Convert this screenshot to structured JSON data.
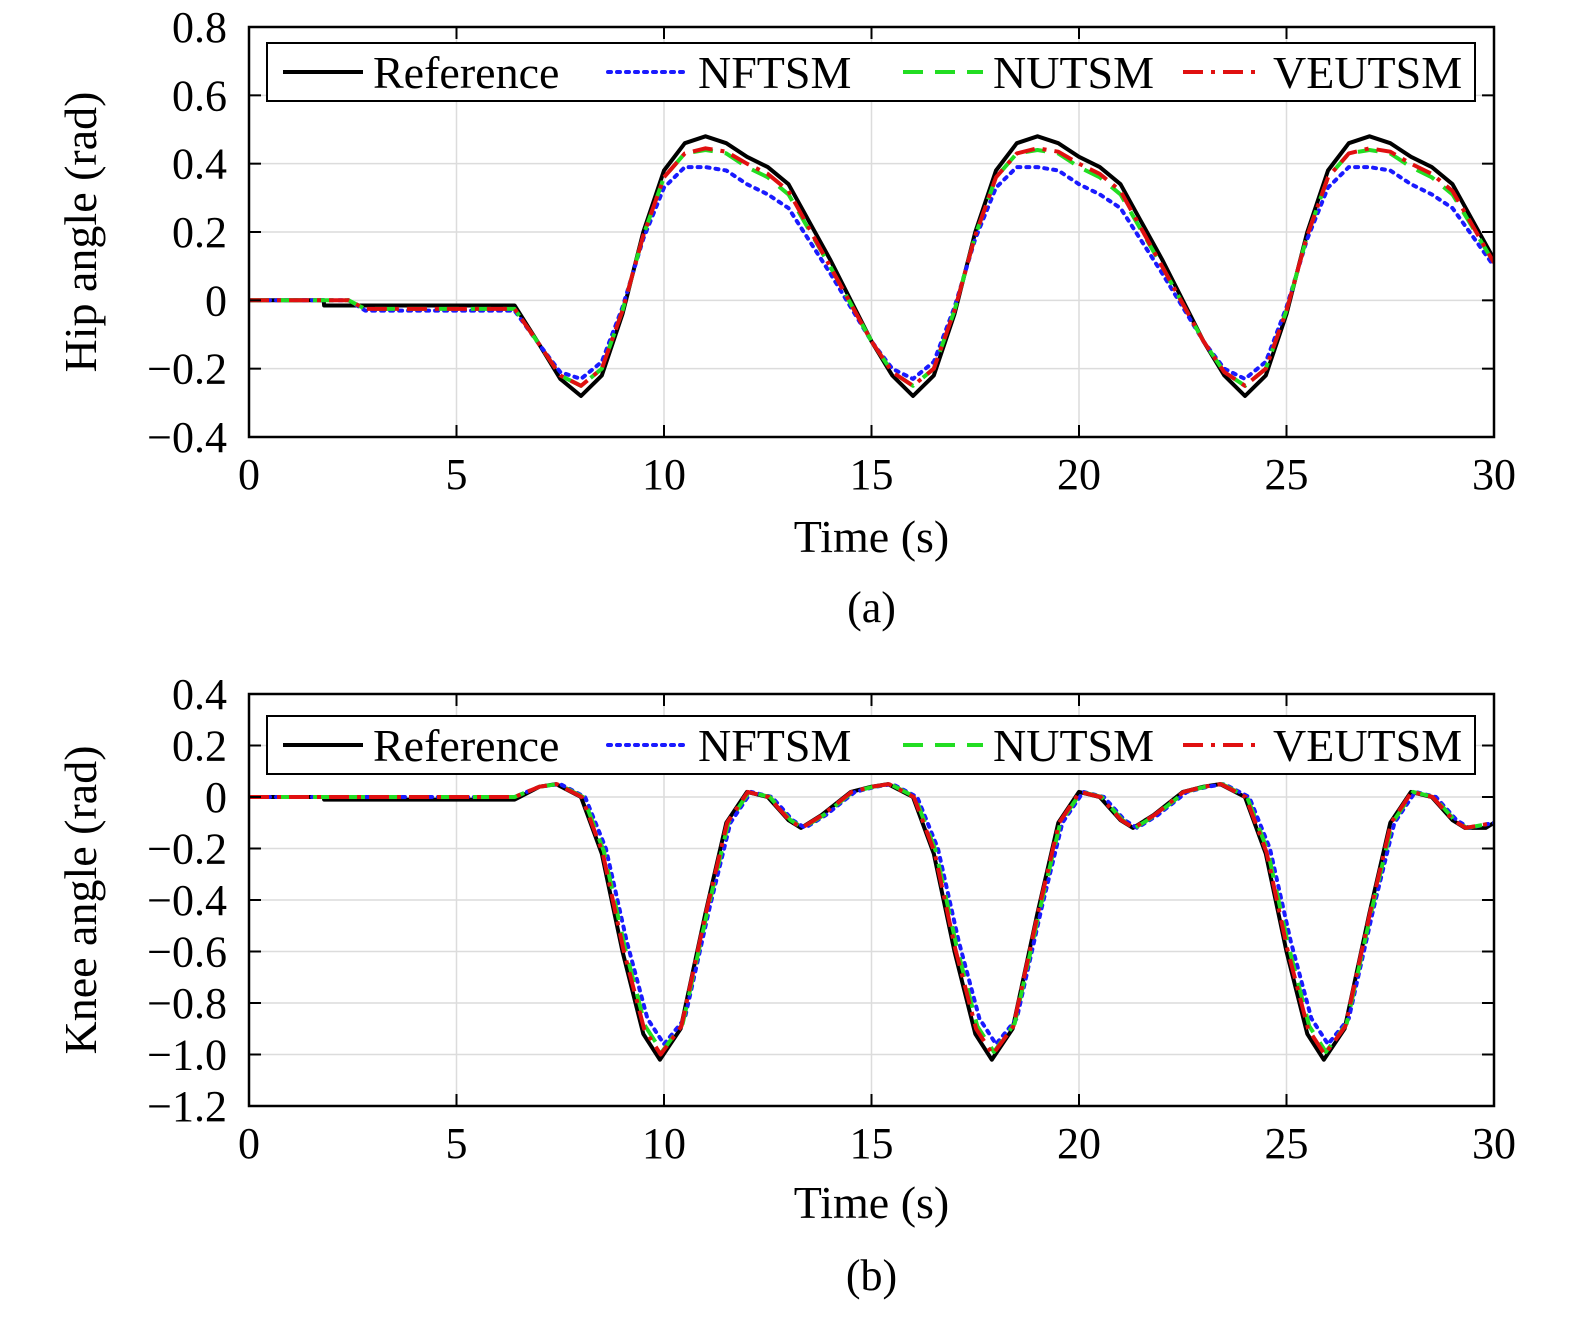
{
  "chart_data": [
    {
      "type": "line",
      "caption": "(a)",
      "title": "",
      "xlabel": "Time (s)",
      "ylabel": "Hip angle (rad)",
      "xlim": [
        0,
        30
      ],
      "ylim": [
        -0.4,
        0.8
      ],
      "xticks": [
        0,
        5,
        10,
        15,
        20,
        25,
        30
      ],
      "xtick_labels": [
        "0",
        "5",
        "10",
        "15",
        "20",
        "25",
        "30"
      ],
      "yticks": [
        -0.4,
        -0.2,
        0,
        0.2,
        0.4,
        0.6,
        0.8
      ],
      "ytick_labels": [
        "−0.4",
        "−0.2",
        "0",
        "0.2",
        "0.4",
        "0.6",
        "0.8"
      ],
      "grid": true,
      "legend_position": "top",
      "series": [
        {
          "name": "Reference",
          "color": "#000000",
          "style": "solid",
          "x": [
            0,
            1.8,
            1.81,
            6.4,
            7.0,
            7.5,
            8.0,
            8.5,
            9.0,
            9.5,
            10.0,
            10.5,
            11.0,
            11.5,
            12.0,
            12.5,
            13.0,
            14.0,
            15.0,
            15.5,
            16.0,
            16.5,
            17.0,
            17.5,
            18.0,
            18.5,
            19.0,
            19.5,
            20.0,
            20.5,
            21.0,
            22.0,
            23.0,
            23.5,
            24.0,
            24.5,
            25.0,
            25.5,
            26.0,
            26.5,
            27.0,
            27.5,
            28.0,
            28.5,
            29.0,
            30.0
          ],
          "y": [
            0,
            0,
            -0.015,
            -0.015,
            -0.13,
            -0.23,
            -0.28,
            -0.22,
            -0.04,
            0.2,
            0.38,
            0.46,
            0.48,
            0.46,
            0.42,
            0.39,
            0.34,
            0.12,
            -0.12,
            -0.22,
            -0.28,
            -0.22,
            -0.04,
            0.2,
            0.38,
            0.46,
            0.48,
            0.46,
            0.42,
            0.39,
            0.34,
            0.12,
            -0.12,
            -0.22,
            -0.28,
            -0.22,
            -0.04,
            0.2,
            0.38,
            0.46,
            0.48,
            0.46,
            0.42,
            0.39,
            0.34,
            0.12
          ]
        },
        {
          "name": "NFTSM",
          "color": "#1a1aff",
          "style": "dotted",
          "x": [
            0,
            2.4,
            2.8,
            6.4,
            7.0,
            7.5,
            8.0,
            8.5,
            9.0,
            9.5,
            10.0,
            10.5,
            11.0,
            11.5,
            12.0,
            12.5,
            13.0,
            14.0,
            15.0,
            15.5,
            16.0,
            16.5,
            17.0,
            17.5,
            18.0,
            18.5,
            19.0,
            19.5,
            20.0,
            20.5,
            21.0,
            22.0,
            23.0,
            23.5,
            24.0,
            24.5,
            25.0,
            25.5,
            26.0,
            26.5,
            27.0,
            27.5,
            28.0,
            28.5,
            29.0,
            30.0
          ],
          "y": [
            0,
            0,
            -0.03,
            -0.03,
            -0.13,
            -0.21,
            -0.23,
            -0.18,
            -0.02,
            0.18,
            0.33,
            0.39,
            0.39,
            0.38,
            0.34,
            0.31,
            0.27,
            0.08,
            -0.12,
            -0.2,
            -0.23,
            -0.18,
            -0.02,
            0.18,
            0.33,
            0.39,
            0.39,
            0.38,
            0.34,
            0.31,
            0.27,
            0.08,
            -0.12,
            -0.2,
            -0.23,
            -0.18,
            -0.02,
            0.18,
            0.33,
            0.39,
            0.39,
            0.38,
            0.34,
            0.31,
            0.27,
            0.1
          ]
        },
        {
          "name": "NUTSM",
          "color": "#22dd22",
          "style": "dashed",
          "x": [
            0,
            2.4,
            2.8,
            6.4,
            7.0,
            7.5,
            8.0,
            8.5,
            9.0,
            9.5,
            10.0,
            10.5,
            11.0,
            11.5,
            12.0,
            12.5,
            13.0,
            14.0,
            15.0,
            15.5,
            16.0,
            16.5,
            17.0,
            17.5,
            18.0,
            18.5,
            19.0,
            19.5,
            20.0,
            20.5,
            21.0,
            22.0,
            23.0,
            23.5,
            24.0,
            24.5,
            25.0,
            25.5,
            26.0,
            26.5,
            27.0,
            27.5,
            28.0,
            28.5,
            29.0,
            30.0
          ],
          "y": [
            0,
            0,
            -0.025,
            -0.025,
            -0.13,
            -0.22,
            -0.25,
            -0.2,
            -0.03,
            0.19,
            0.36,
            0.43,
            0.44,
            0.43,
            0.39,
            0.36,
            0.31,
            0.1,
            -0.12,
            -0.21,
            -0.25,
            -0.2,
            -0.03,
            0.19,
            0.36,
            0.43,
            0.44,
            0.43,
            0.39,
            0.36,
            0.31,
            0.1,
            -0.12,
            -0.21,
            -0.25,
            -0.2,
            -0.03,
            0.19,
            0.36,
            0.43,
            0.44,
            0.43,
            0.39,
            0.36,
            0.31,
            0.11
          ]
        },
        {
          "name": "VEUTSM",
          "color": "#e01010",
          "style": "dashdot",
          "x": [
            0,
            2.4,
            2.8,
            6.4,
            7.0,
            7.5,
            8.0,
            8.5,
            9.0,
            9.5,
            10.0,
            10.5,
            11.0,
            11.5,
            12.0,
            12.5,
            13.0,
            14.0,
            15.0,
            15.5,
            16.0,
            16.5,
            17.0,
            17.5,
            18.0,
            18.5,
            19.0,
            19.5,
            20.0,
            20.5,
            21.0,
            22.0,
            23.0,
            23.5,
            24.0,
            24.5,
            25.0,
            25.5,
            26.0,
            26.5,
            27.0,
            27.5,
            28.0,
            28.5,
            29.0,
            30.0
          ],
          "y": [
            0,
            0,
            -0.025,
            -0.025,
            -0.13,
            -0.22,
            -0.25,
            -0.2,
            -0.03,
            0.19,
            0.36,
            0.43,
            0.445,
            0.435,
            0.4,
            0.37,
            0.32,
            0.1,
            -0.12,
            -0.21,
            -0.25,
            -0.2,
            -0.03,
            0.19,
            0.36,
            0.43,
            0.445,
            0.435,
            0.4,
            0.37,
            0.32,
            0.1,
            -0.12,
            -0.21,
            -0.25,
            -0.2,
            -0.03,
            0.19,
            0.36,
            0.43,
            0.445,
            0.435,
            0.4,
            0.37,
            0.32,
            0.11
          ]
        }
      ]
    },
    {
      "type": "line",
      "caption": "(b)",
      "title": "",
      "xlabel": "Time (s)",
      "ylabel": "Knee angle (rad)",
      "xlim": [
        0,
        30
      ],
      "ylim": [
        -1.2,
        0.4
      ],
      "xticks": [
        0,
        5,
        10,
        15,
        20,
        25,
        30
      ],
      "xtick_labels": [
        "0",
        "5",
        "10",
        "15",
        "20",
        "25",
        "30"
      ],
      "yticks": [
        -1.2,
        -1.0,
        -0.8,
        -0.6,
        -0.4,
        -0.2,
        0,
        0.2,
        0.4
      ],
      "ytick_labels": [
        "−1.2",
        "−1.0",
        "−0.8",
        "−0.6",
        "−0.4",
        "−0.2",
        "0",
        "0.2",
        "0.4"
      ],
      "grid": true,
      "legend_position": "top",
      "series": [
        {
          "name": "Reference",
          "color": "#000000",
          "style": "solid",
          "x": [
            0,
            1.8,
            1.81,
            6.4,
            7.0,
            7.4,
            8.0,
            8.5,
            9.0,
            9.5,
            9.9,
            10.4,
            11.0,
            11.5,
            12.0,
            12.5,
            13.0,
            13.3,
            13.8,
            14.5,
            15.0,
            15.4,
            16.0,
            16.5,
            17.0,
            17.5,
            17.9,
            18.4,
            19.0,
            19.5,
            20.0,
            20.5,
            21.0,
            21.3,
            21.8,
            22.5,
            23.0,
            23.4,
            24.0,
            24.5,
            25.0,
            25.5,
            25.9,
            26.4,
            27.0,
            27.5,
            28.0,
            28.5,
            29.0,
            29.3,
            29.8,
            30.0
          ],
          "y": [
            0,
            0,
            -0.01,
            -0.01,
            0.04,
            0.05,
            0.0,
            -0.22,
            -0.6,
            -0.92,
            -1.02,
            -0.9,
            -0.45,
            -0.1,
            0.02,
            0.0,
            -0.09,
            -0.12,
            -0.07,
            0.02,
            0.04,
            0.05,
            0.0,
            -0.22,
            -0.6,
            -0.92,
            -1.02,
            -0.9,
            -0.45,
            -0.1,
            0.02,
            0.0,
            -0.09,
            -0.12,
            -0.07,
            0.02,
            0.04,
            0.05,
            0.0,
            -0.22,
            -0.6,
            -0.92,
            -1.02,
            -0.9,
            -0.45,
            -0.1,
            0.02,
            0.0,
            -0.09,
            -0.12,
            -0.12,
            -0.1
          ]
        },
        {
          "name": "NFTSM",
          "color": "#1a1aff",
          "style": "dotted",
          "x": [
            0,
            6.4,
            7.0,
            7.5,
            8.1,
            8.6,
            9.1,
            9.6,
            10.0,
            10.5,
            11.1,
            11.6,
            12.1,
            12.6,
            13.1,
            13.4,
            13.9,
            14.6,
            15.1,
            15.5,
            16.1,
            16.6,
            17.1,
            17.6,
            18.0,
            18.5,
            19.1,
            19.6,
            20.1,
            20.6,
            21.1,
            21.4,
            21.9,
            22.6,
            23.1,
            23.5,
            24.1,
            24.6,
            25.1,
            25.6,
            26.0,
            26.5,
            27.1,
            27.6,
            28.1,
            28.6,
            29.1,
            29.4,
            30.0
          ],
          "y": [
            0,
            0,
            0.04,
            0.05,
            0.0,
            -0.2,
            -0.56,
            -0.86,
            -0.96,
            -0.86,
            -0.43,
            -0.1,
            0.02,
            0.0,
            -0.09,
            -0.12,
            -0.07,
            0.02,
            0.04,
            0.05,
            0.0,
            -0.2,
            -0.56,
            -0.86,
            -0.96,
            -0.86,
            -0.43,
            -0.1,
            0.02,
            0.0,
            -0.09,
            -0.12,
            -0.07,
            0.02,
            0.04,
            0.05,
            0.0,
            -0.2,
            -0.56,
            -0.86,
            -0.96,
            -0.86,
            -0.43,
            -0.1,
            0.02,
            0.0,
            -0.09,
            -0.12,
            -0.1
          ]
        },
        {
          "name": "NUTSM",
          "color": "#22dd22",
          "style": "dashed",
          "x": [
            0,
            6.4,
            7.0,
            7.45,
            8.05,
            8.55,
            9.05,
            9.55,
            9.95,
            10.45,
            11.05,
            11.55,
            12.05,
            12.55,
            13.05,
            13.35,
            13.85,
            14.55,
            15.05,
            15.45,
            16.05,
            16.55,
            17.05,
            17.55,
            17.95,
            18.45,
            19.05,
            19.55,
            20.05,
            20.55,
            21.05,
            21.35,
            21.85,
            22.55,
            23.05,
            23.45,
            24.05,
            24.55,
            25.05,
            25.55,
            25.95,
            26.45,
            27.05,
            27.55,
            28.05,
            28.55,
            29.05,
            29.35,
            30.0
          ],
          "y": [
            0,
            0,
            0.04,
            0.05,
            0.0,
            -0.21,
            -0.58,
            -0.89,
            -0.99,
            -0.88,
            -0.44,
            -0.1,
            0.02,
            0.0,
            -0.09,
            -0.12,
            -0.07,
            0.02,
            0.04,
            0.05,
            0.0,
            -0.21,
            -0.58,
            -0.89,
            -0.99,
            -0.88,
            -0.44,
            -0.1,
            0.02,
            0.0,
            -0.09,
            -0.12,
            -0.07,
            0.02,
            0.04,
            0.05,
            0.0,
            -0.21,
            -0.58,
            -0.89,
            -0.99,
            -0.88,
            -0.44,
            -0.1,
            0.02,
            0.0,
            -0.09,
            -0.12,
            -0.1
          ]
        },
        {
          "name": "VEUTSM",
          "color": "#e01010",
          "style": "dashdot",
          "x": [
            0,
            6.4,
            7.0,
            7.42,
            8.02,
            8.52,
            9.02,
            9.52,
            9.92,
            10.42,
            11.02,
            11.52,
            12.02,
            12.52,
            13.02,
            13.32,
            13.82,
            14.52,
            15.02,
            15.42,
            16.02,
            16.52,
            17.02,
            17.52,
            17.92,
            18.42,
            19.02,
            19.52,
            20.02,
            20.52,
            21.02,
            21.32,
            21.82,
            22.52,
            23.02,
            23.42,
            24.02,
            24.52,
            25.02,
            25.52,
            25.92,
            26.42,
            27.02,
            27.52,
            28.02,
            28.52,
            29.02,
            29.32,
            30.0
          ],
          "y": [
            0,
            0,
            0.04,
            0.05,
            0.0,
            -0.215,
            -0.59,
            -0.9,
            -1.0,
            -0.89,
            -0.445,
            -0.1,
            0.02,
            0.0,
            -0.09,
            -0.12,
            -0.07,
            0.02,
            0.04,
            0.05,
            0.0,
            -0.215,
            -0.59,
            -0.9,
            -1.0,
            -0.89,
            -0.445,
            -0.1,
            0.02,
            0.0,
            -0.09,
            -0.12,
            -0.07,
            0.02,
            0.04,
            0.05,
            0.0,
            -0.215,
            -0.59,
            -0.9,
            -1.0,
            -0.89,
            -0.445,
            -0.1,
            0.02,
            0.0,
            -0.09,
            -0.12,
            -0.1
          ]
        }
      ]
    }
  ]
}
